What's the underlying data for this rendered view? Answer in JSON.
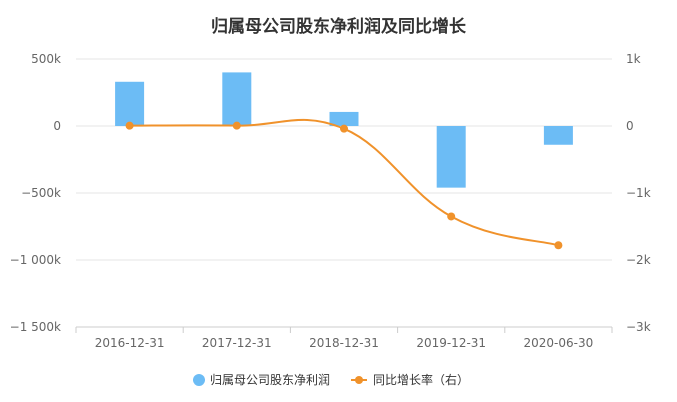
{
  "chart_data": {
    "type": "bar+line",
    "title": "归属母公司股东净利润及同比增长",
    "categories": [
      "2016-12-31",
      "2017-12-31",
      "2018-12-31",
      "2019-12-31",
      "2020-06-30"
    ],
    "series": [
      {
        "name": "归属母公司股东净利润",
        "type": "bar",
        "axis": "left",
        "color": "#6cbcf5",
        "values": [
          330000,
          400000,
          105000,
          -460000,
          -140000
        ]
      },
      {
        "name": "同比增长率（右）",
        "type": "line",
        "axis": "right",
        "color": "#f0922b",
        "values": [
          5,
          5,
          -40,
          -1350,
          -1780
        ]
      }
    ],
    "y_left": {
      "ylim": [
        -1500000,
        500000
      ],
      "ticks": [
        500000,
        0,
        -500000,
        -1000000,
        -1500000
      ],
      "tick_labels": [
        "500k",
        "0",
        "−500k",
        "−1 000k",
        "−1 500k"
      ]
    },
    "y_right": {
      "ylim": [
        -3000,
        1000
      ],
      "ticks": [
        1000,
        0,
        -1000,
        -2000,
        -3000
      ],
      "tick_labels": [
        "1k",
        "0",
        "−1k",
        "−2k",
        "−3k"
      ]
    },
    "grid": true,
    "legend": "bottom"
  }
}
